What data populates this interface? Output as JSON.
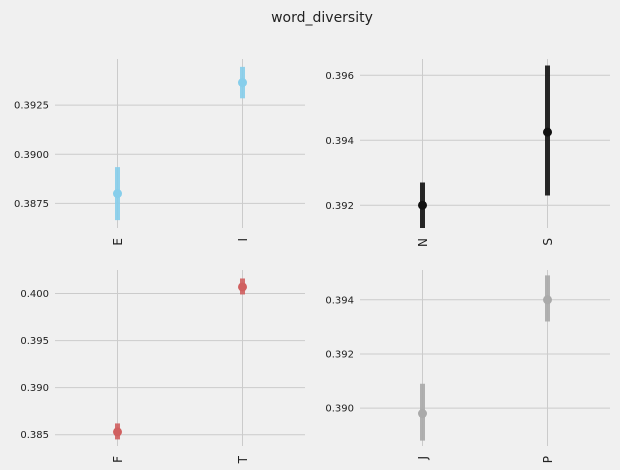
{
  "title": "word_diversity",
  "chart_data": [
    {
      "type": "errorbar",
      "color": "#87ceeb",
      "categories": [
        "E",
        "I"
      ],
      "values": [
        0.388,
        0.39365
      ],
      "ci_low": [
        0.38665,
        0.39285
      ],
      "ci_high": [
        0.38935,
        0.39445
      ],
      "yticks": [
        "0.3875",
        "0.3900",
        "0.3925"
      ],
      "ytick_values": [
        0.3875,
        0.39,
        0.3925
      ],
      "ylim": [
        0.38625,
        0.39485
      ]
    },
    {
      "type": "errorbar",
      "color": "#111111",
      "categories": [
        "N",
        "S"
      ],
      "values": [
        0.392,
        0.39425
      ],
      "ci_low": [
        0.3913,
        0.3923
      ],
      "ci_high": [
        0.3927,
        0.3963
      ],
      "yticks": [
        "0.392",
        "0.394",
        "0.396"
      ],
      "ytick_values": [
        0.392,
        0.394,
        0.396
      ],
      "ylim": [
        0.3913,
        0.3965
      ]
    },
    {
      "type": "errorbar",
      "color": "#d06060",
      "categories": [
        "F",
        "T"
      ],
      "values": [
        0.3853,
        0.4007
      ],
      "ci_low": [
        0.3845,
        0.3999
      ],
      "ci_high": [
        0.3862,
        0.4016
      ],
      "yticks": [
        "0.385",
        "0.390",
        "0.395",
        "0.400"
      ],
      "ytick_values": [
        0.385,
        0.39,
        0.395,
        0.4
      ],
      "ylim": [
        0.3838,
        0.4025
      ]
    },
    {
      "type": "errorbar",
      "color": "#aaaaaa",
      "categories": [
        "J",
        "P"
      ],
      "values": [
        0.3898,
        0.394
      ],
      "ci_low": [
        0.3888,
        0.3932
      ],
      "ci_high": [
        0.3909,
        0.3949
      ],
      "yticks": [
        "0.390",
        "0.392",
        "0.394"
      ],
      "ytick_values": [
        0.39,
        0.392,
        0.394
      ],
      "ylim": [
        0.3886,
        0.3951
      ]
    }
  ]
}
